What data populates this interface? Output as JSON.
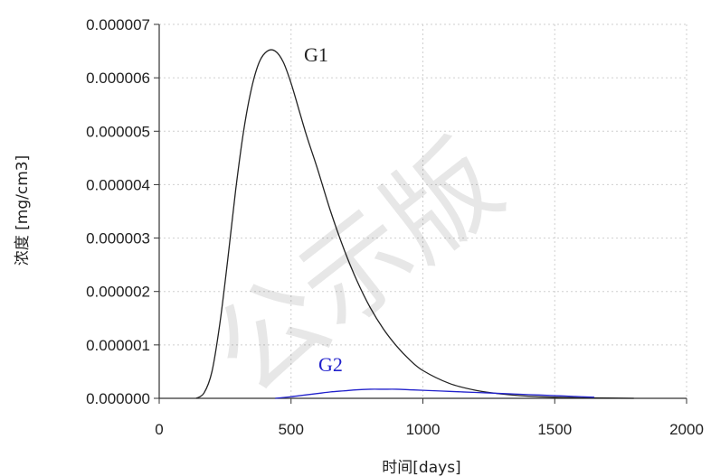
{
  "chart_data": {
    "type": "line",
    "xlabel": "时间[days]",
    "ylabel": "浓度 [mg/cm3]",
    "xlim": [
      0,
      2000
    ],
    "ylim": [
      0,
      7e-06
    ],
    "x_ticks": [
      "0",
      "500",
      "1000",
      "1500",
      "2000"
    ],
    "y_ticks": [
      "0.000000",
      "0.000001",
      "0.000002",
      "0.000003",
      "0.000004",
      "0.000005",
      "0.000006",
      "0.000007"
    ],
    "grid": true,
    "watermark": "公示版",
    "series": [
      {
        "name": "G1",
        "color": "#222222",
        "x": [
          140,
          170,
          200,
          230,
          260,
          290,
          320,
          350,
          380,
          410,
          440,
          470,
          500,
          530,
          560,
          600,
          650,
          700,
          750,
          800,
          850,
          900,
          950,
          1000,
          1100,
          1200,
          1300,
          1400,
          1500,
          1600,
          1700,
          1800
        ],
        "y": [
          0.0,
          1e-07,
          5e-07,
          1.4e-06,
          2.6e-06,
          3.9e-06,
          5e-06,
          5.8e-06,
          6.3e-06,
          6.5e-06,
          6.5e-06,
          6.3e-06,
          5.9e-06,
          5.4e-06,
          4.9e-06,
          4.3e-06,
          3.5e-06,
          2.8e-06,
          2.2e-06,
          1.7e-06,
          1.3e-06,
          9.8e-07,
          7.2e-07,
          5.2e-07,
          2.8e-07,
          1.5e-07,
          8e-08,
          4e-08,
          2e-08,
          1e-08,
          5e-09,
          0.0
        ]
      },
      {
        "name": "G2",
        "color": "#2222cc",
        "x": [
          440,
          500,
          550,
          600,
          650,
          700,
          750,
          800,
          850,
          900,
          950,
          1000,
          1100,
          1200,
          1300,
          1400,
          1500,
          1600,
          1650
        ],
        "y": [
          0.0,
          3e-08,
          6e-08,
          9e-08,
          1.2e-07,
          1.4e-07,
          1.6e-07,
          1.7e-07,
          1.7e-07,
          1.7e-07,
          1.6e-07,
          1.5e-07,
          1.3e-07,
          1.1e-07,
          9e-08,
          7e-08,
          5e-08,
          3e-08,
          2e-08
        ]
      }
    ]
  }
}
